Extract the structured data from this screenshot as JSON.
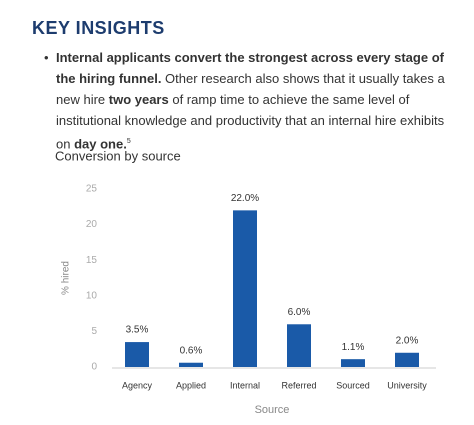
{
  "header": {
    "title": "KEY INSIGHTS"
  },
  "bullet": {
    "runs": [
      {
        "text": "Internal applicants convert the strongest across every stage of the hiring funnel.",
        "bold": true
      },
      {
        "text": " Other research also shows that it usually takes a new hire ",
        "bold": false
      },
      {
        "text": "two years",
        "bold": true
      },
      {
        "text": " of ramp time to achieve the same level of institutional knowledge and productivity that an internal hire exhibits on ",
        "bold": false
      },
      {
        "text": "day one.",
        "bold": true
      }
    ],
    "footnote": "5"
  },
  "chart_data": {
    "type": "bar",
    "title": "Conversion by source",
    "x_label": "Source",
    "y_label": "% hired",
    "categories": [
      "Agency",
      "Applied",
      "Internal",
      "Referred",
      "Sourced",
      "University"
    ],
    "values": [
      3.5,
      0.6,
      22.0,
      6.0,
      1.1,
      2.0
    ],
    "value_labels": [
      "3.5%",
      "0.6%",
      "22.0%",
      "6.0%",
      "1.1%",
      "2.0%"
    ],
    "color": "#1a5aa8",
    "ylim": [
      0,
      25
    ],
    "yticks": [
      0,
      5,
      10,
      15,
      20,
      25
    ],
    "grid": false
  }
}
